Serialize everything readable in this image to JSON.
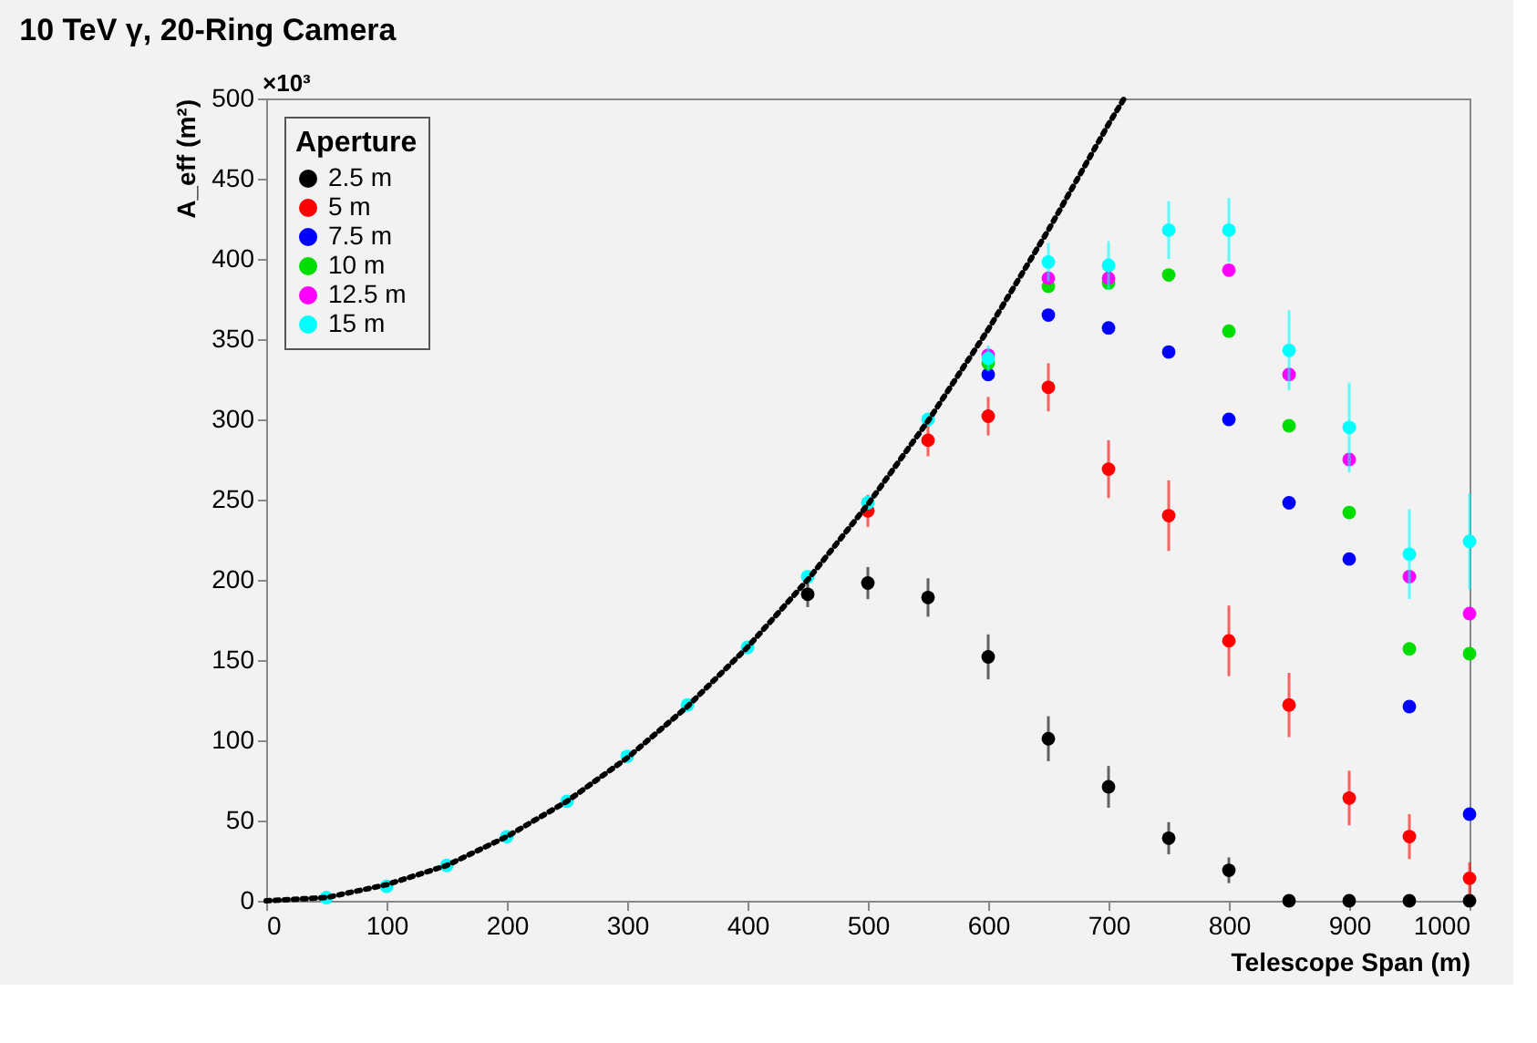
{
  "chart_data": {
    "type": "scatter",
    "title": "10 TeV γ, 20-Ring Camera",
    "xlabel": "Telescope Span (m)",
    "ylabel": "A_eff (m²)",
    "legend_title": "Aperture",
    "annotations": [
      "×10³"
    ],
    "x": [
      50,
      100,
      150,
      200,
      250,
      300,
      350,
      400,
      450,
      500,
      550,
      600,
      650,
      700,
      750,
      800,
      850,
      900,
      950,
      1000
    ],
    "series": [
      {
        "name": "2.5 m",
        "color": "#000000",
        "values": [
          null,
          null,
          null,
          null,
          null,
          null,
          null,
          null,
          191,
          198,
          189,
          152,
          101,
          71,
          39,
          19,
          0,
          0,
          0,
          0
        ],
        "errors": [
          null,
          null,
          null,
          null,
          null,
          null,
          null,
          null,
          8,
          10,
          12,
          14,
          14,
          13,
          10,
          8,
          null,
          null,
          null,
          null
        ]
      },
      {
        "name": "5 m",
        "color": "#ff0000",
        "values": [
          null,
          null,
          null,
          null,
          null,
          null,
          null,
          null,
          null,
          243,
          287,
          302,
          320,
          269,
          240,
          162,
          122,
          64,
          40,
          14
        ],
        "errors": [
          null,
          null,
          null,
          null,
          null,
          null,
          null,
          null,
          null,
          10,
          10,
          12,
          15,
          18,
          22,
          22,
          20,
          17,
          14,
          10
        ]
      },
      {
        "name": "7.5 m",
        "color": "#0000ff",
        "values": [
          null,
          null,
          null,
          null,
          null,
          null,
          null,
          null,
          null,
          null,
          null,
          328,
          365,
          357,
          342,
          300,
          248,
          213,
          121,
          54
        ]
      },
      {
        "name": "10 m",
        "color": "#00dd00",
        "values": [
          null,
          null,
          null,
          null,
          null,
          null,
          null,
          null,
          null,
          null,
          null,
          335,
          383,
          385,
          390,
          355,
          296,
          242,
          157,
          154
        ]
      },
      {
        "name": "12.5 m",
        "color": "#ff00ff",
        "values": [
          null,
          null,
          null,
          null,
          null,
          null,
          null,
          null,
          null,
          null,
          null,
          340,
          388,
          388,
          null,
          393,
          328,
          275,
          202,
          179
        ]
      },
      {
        "name": "15 m",
        "color": "#00ffff",
        "values": [
          2,
          9,
          22,
          40,
          62,
          90,
          122,
          158,
          202,
          248,
          300,
          338,
          398,
          396,
          418,
          418,
          343,
          295,
          216,
          224
        ],
        "errors": [
          null,
          null,
          null,
          null,
          null,
          null,
          null,
          null,
          null,
          null,
          null,
          8,
          12,
          15,
          18,
          20,
          25,
          28,
          28,
          30
        ]
      },
      {
        "type": "line",
        "color": "#000000",
        "line_style": "dotted",
        "marker": "none",
        "x": [
          0,
          50,
          100,
          150,
          200,
          250,
          300,
          350,
          400,
          450,
          500,
          550,
          600,
          650,
          700,
          713
        ],
        "values": [
          0,
          2,
          10,
          22,
          40,
          62,
          89,
          121,
          158,
          200,
          247,
          299,
          356,
          418,
          484,
          500
        ]
      }
    ],
    "xlim": [
      0,
      1000
    ],
    "ylim": [
      0,
      500
    ],
    "xticks": [
      0,
      100,
      200,
      300,
      400,
      500,
      600,
      700,
      800,
      900,
      1000
    ],
    "yticks": [
      0,
      50,
      100,
      150,
      200,
      250,
      300,
      350,
      400,
      450,
      500
    ],
    "grid": false,
    "legend": "top left",
    "marker": "circle"
  }
}
